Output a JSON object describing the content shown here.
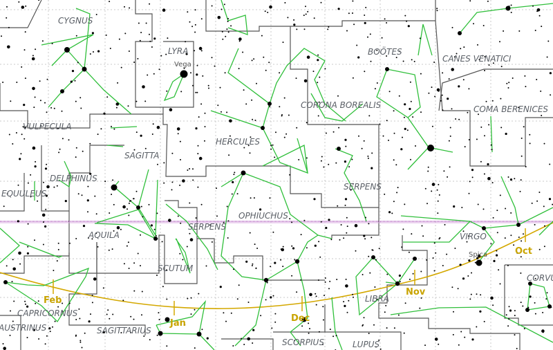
{
  "constellations": [
    {
      "name": "CYGNUS"
    },
    {
      "name": "LYRA"
    },
    {
      "name": "BOÖTES"
    },
    {
      "name": "CANES VENATICI"
    },
    {
      "name": "CORONA BOREALIS"
    },
    {
      "name": "COMA BERENICES"
    },
    {
      "name": "VULPECULA"
    },
    {
      "name": "SAGITTA"
    },
    {
      "name": "HERCULES"
    },
    {
      "name": "SERPENS"
    },
    {
      "name": "EQUULEUS"
    },
    {
      "name": "DELPHINUS"
    },
    {
      "name": "OPHIUCHUS"
    },
    {
      "name": "AQUILA"
    },
    {
      "name": "SERPENS"
    },
    {
      "name": "VIRGO"
    },
    {
      "name": "SCUTUM"
    },
    {
      "name": "CORVUS"
    },
    {
      "name": "LIBRA"
    },
    {
      "name": "CAPRICORNUS"
    },
    {
      "name": "AUSTRINUS"
    },
    {
      "name": "SAGITTARIUS"
    },
    {
      "name": "SCORPIUS"
    },
    {
      "name": "LUPUS"
    }
  ],
  "star_names": [
    {
      "name": "Vega"
    },
    {
      "name": "Spica"
    }
  ],
  "ecliptic_months": [
    {
      "name": "Oct"
    },
    {
      "name": "Nov"
    },
    {
      "name": "Dec"
    },
    {
      "name": "Jan"
    },
    {
      "name": "Feb"
    }
  ],
  "colors": {
    "constellation_lines": "#2fbf3a",
    "boundaries": "#555555",
    "ecliptic": "#d4a800",
    "celestial_equator": "#a040b0",
    "labels": "#5a5f66",
    "month_labels": "#c9a400"
  }
}
